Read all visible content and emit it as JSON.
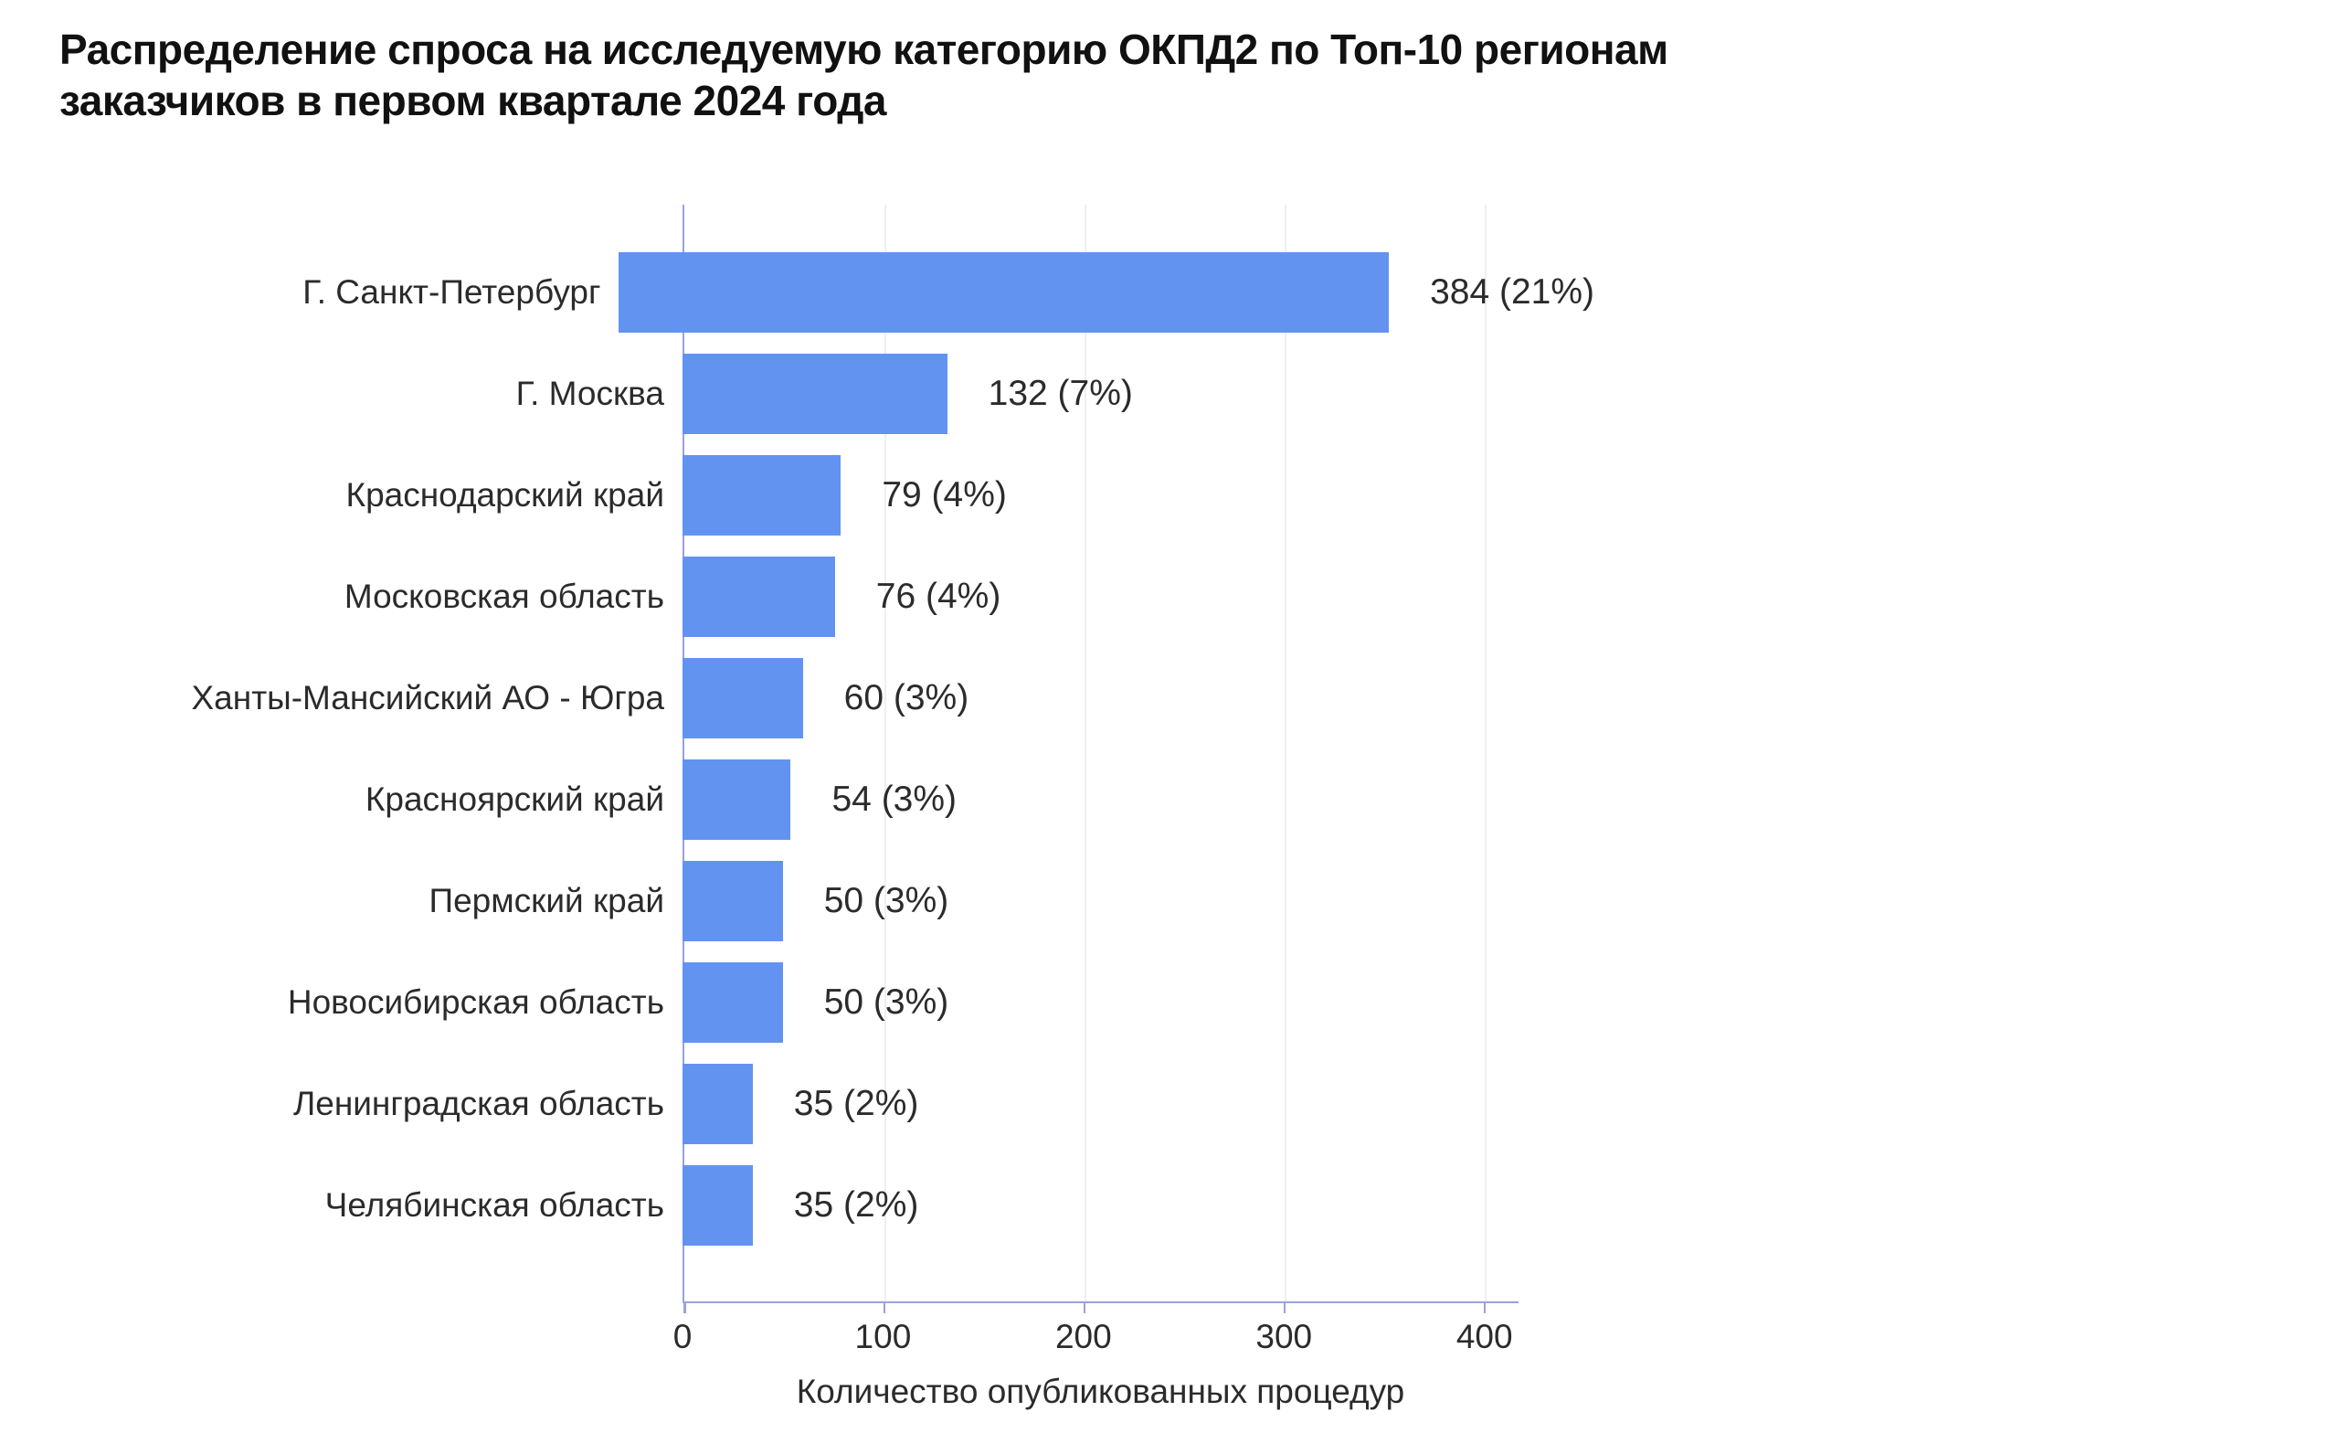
{
  "chart_data": {
    "type": "bar",
    "orientation": "horizontal",
    "title": "Распределение спроса на исследуемую категорию ОКПД2 по Топ-10 регионам заказчиков в первом квартале 2024 года",
    "title_lines": [
      "Распределение спроса на исследуемую категорию ОКПД2 по Топ-10 регионам",
      "заказчиков в первом квартале 2024 года"
    ],
    "xlabel": "Количество опубликованных процедур",
    "ylabel": "",
    "categories": [
      "Г. Санкт-Петербург",
      "Г. Москва",
      "Краснодарский край",
      "Московская область",
      "Ханты-Мансийский АО - Югра",
      "Красноярский край",
      "Пермский край",
      "Новосибирская область",
      "Ленинградская область",
      "Челябинская область"
    ],
    "values": [
      384,
      132,
      79,
      76,
      60,
      54,
      50,
      50,
      35,
      35
    ],
    "percentages": [
      21,
      7,
      4,
      4,
      3,
      3,
      3,
      3,
      2,
      2
    ],
    "value_labels": [
      "384 (21%)",
      "132 (7%)",
      "79 (4%)",
      "76 (4%)",
      "60 (3%)",
      "54 (3%)",
      "50 (3%)",
      "50 (3%)",
      "35 (2%)",
      "35 (2%)"
    ],
    "xticks": [
      0,
      100,
      200,
      300,
      400
    ],
    "xtick_labels": [
      "0",
      "100",
      "200",
      "300",
      "400"
    ],
    "xlim": [
      0,
      417
    ],
    "grid": true,
    "legend": false,
    "colors": {
      "bar": "#6393f1",
      "axis": "#98a3d9",
      "grid": "#efefef",
      "title_text": "#111111",
      "label_text": "#2b2b2b"
    }
  }
}
